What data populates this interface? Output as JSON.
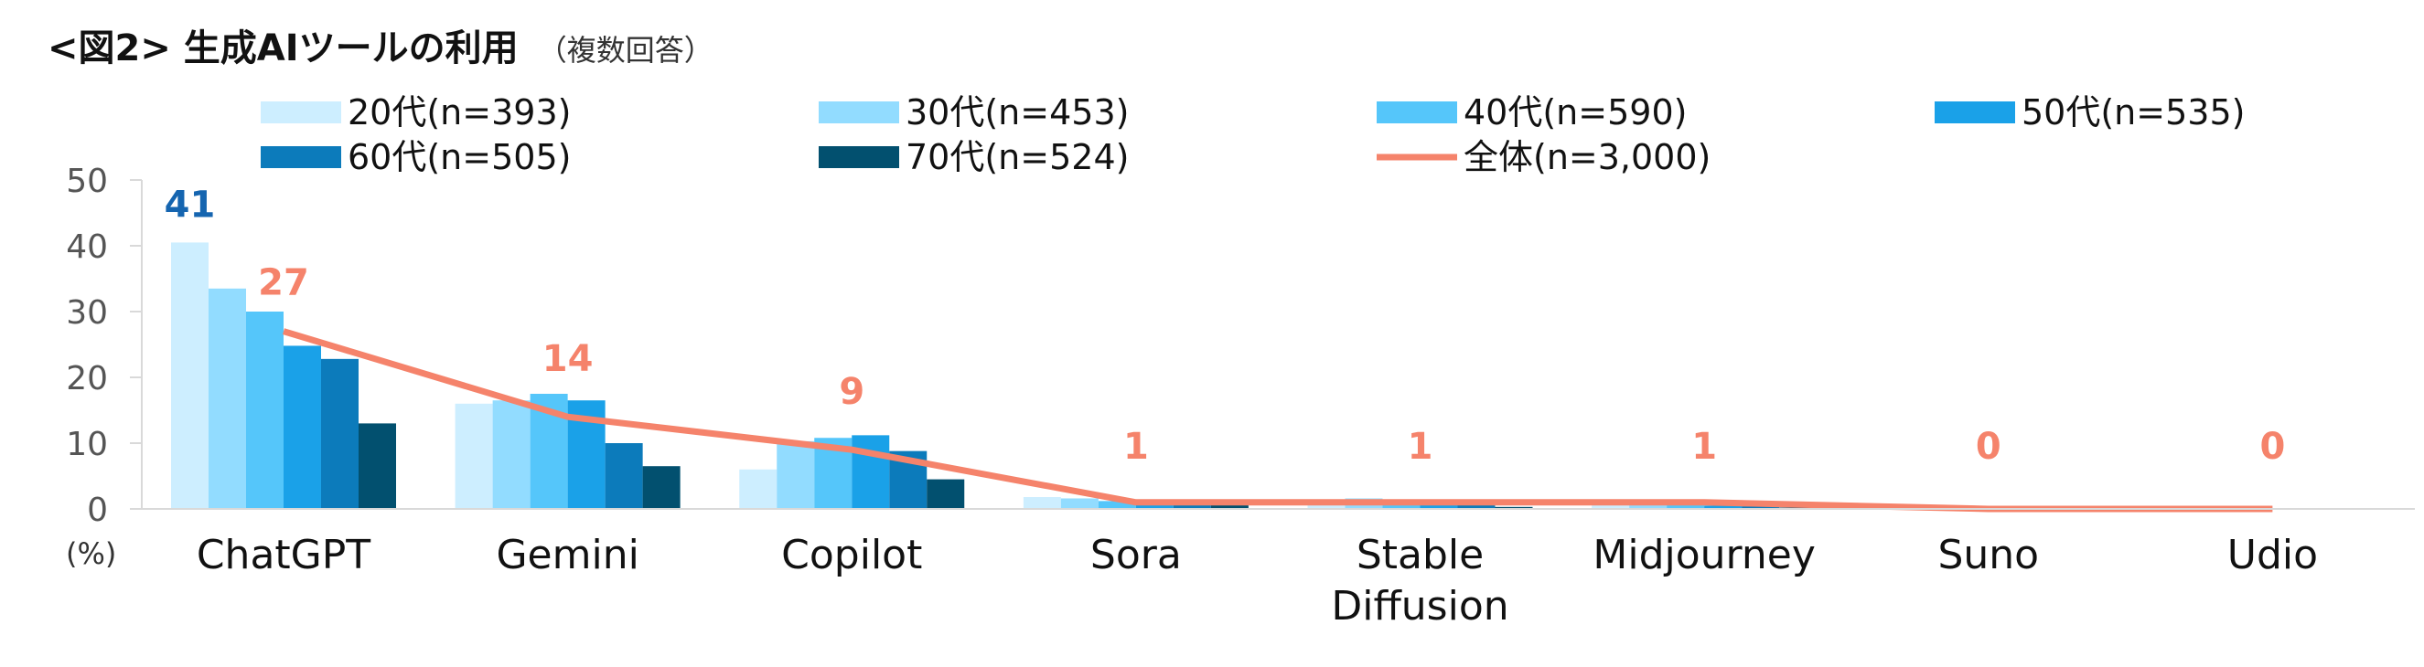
{
  "title": "<図2> 生成AIツールの利用",
  "subtitle": "（複数回答）",
  "chart_data": {
    "type": "bar",
    "categories": [
      "ChatGPT",
      "Gemini",
      "Copilot",
      "Sora",
      "Stable\nDiffusion",
      "Midjourney",
      "Suno",
      "Udio"
    ],
    "series": [
      {
        "name": "20代(n=393)",
        "color": "#CDEEFF",
        "values": [
          40.5,
          16.0,
          6.0,
          1.8,
          1.2,
          0.6,
          0.3,
          0.2
        ]
      },
      {
        "name": "30代(n=453)",
        "color": "#92DCFF",
        "values": [
          33.5,
          16.5,
          10.3,
          1.6,
          1.6,
          0.6,
          0.3,
          0.2
        ]
      },
      {
        "name": "40代(n=590)",
        "color": "#55C6FA",
        "values": [
          30.0,
          17.5,
          10.8,
          1.2,
          1.0,
          0.6,
          0.3,
          0.2
        ]
      },
      {
        "name": "50代(n=535)",
        "color": "#1AA1E8",
        "values": [
          24.8,
          16.5,
          11.2,
          1.2,
          0.9,
          0.5,
          0.2,
          0.1
        ]
      },
      {
        "name": "60代(n=505)",
        "color": "#0C7BBB",
        "values": [
          22.8,
          10.0,
          8.8,
          1.0,
          0.6,
          0.4,
          0.2,
          0.1
        ]
      },
      {
        "name": "70代(n=524)",
        "color": "#02506F",
        "values": [
          13.0,
          6.5,
          4.5,
          0.6,
          0.3,
          0.2,
          0.1,
          0.1
        ]
      }
    ],
    "line": {
      "name": "全体(n=3,000)",
      "color": "#F5836B",
      "values": [
        27,
        14,
        9,
        1,
        1,
        1,
        0,
        0
      ]
    },
    "data_labels": [
      {
        "text": "41",
        "color": "#1565B0"
      },
      {
        "text": "27",
        "color": "#F5836B"
      },
      {
        "text": "14",
        "color": "#F5836B"
      },
      {
        "text": "9",
        "color": "#F5836B"
      },
      {
        "text": "1",
        "color": "#F5836B"
      },
      {
        "text": "1",
        "color": "#F5836B"
      },
      {
        "text": "1",
        "color": "#F5836B"
      },
      {
        "text": "0",
        "color": "#F5836B"
      },
      {
        "text": "0",
        "color": "#F5836B"
      }
    ],
    "y_ticks": [
      0,
      10,
      20,
      30,
      40,
      50
    ],
    "ylim": [
      0,
      50
    ],
    "y_unit": "(%)",
    "legend_position": "top",
    "axis_color": "#D9D9D9"
  }
}
